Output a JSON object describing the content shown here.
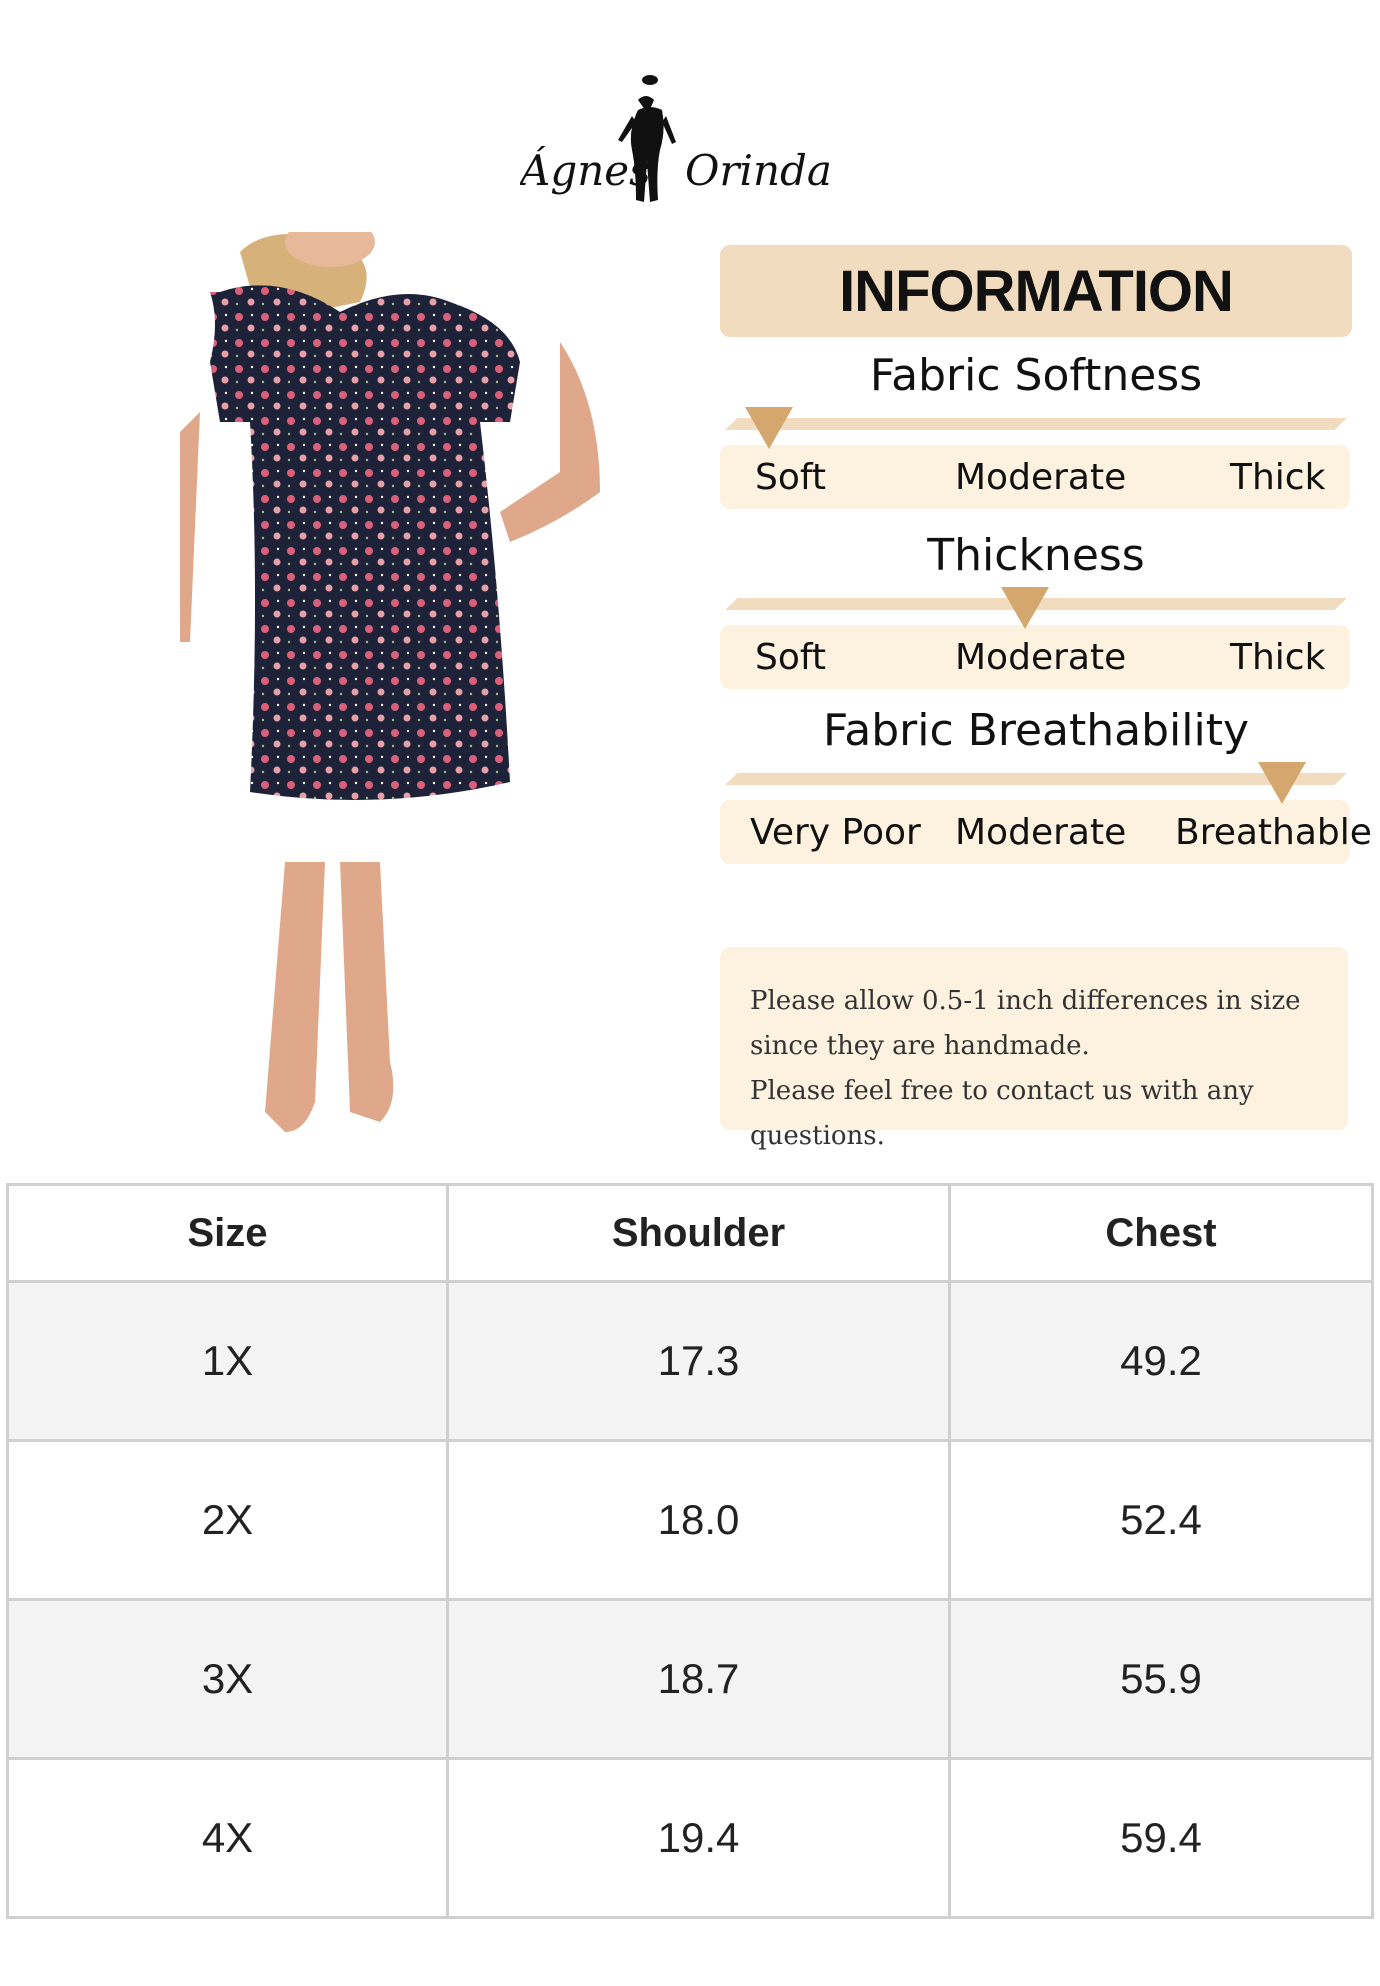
{
  "brand": {
    "logo_text": "Ágnes Orinda"
  },
  "info": {
    "title": "INFORMATION",
    "sections": [
      {
        "title": "Fabric Softness",
        "labels": [
          "Soft",
          "Moderate",
          "Thick"
        ],
        "selected": "Soft",
        "level": 0.05
      },
      {
        "title": "Thickness",
        "labels": [
          "Soft",
          "Moderate",
          "Thick"
        ],
        "selected": "Moderate",
        "level": 0.5
      },
      {
        "title": "Fabric Breathability",
        "labels": [
          "Very Poor",
          "Moderate",
          "Breathable"
        ],
        "selected": "Breathable",
        "level": 0.95
      }
    ],
    "note": [
      "Please allow 0.5-1 inch differences in size",
      "since they are handmade.",
      "Please feel free to contact us with any questions."
    ]
  },
  "size_table": {
    "headers": [
      "Size",
      "Shoulder",
      "Chest"
    ],
    "rows": [
      [
        "1X",
        "17.3",
        "49.2"
      ],
      [
        "2X",
        "18.0",
        "52.4"
      ],
      [
        "3X",
        "18.7",
        "55.9"
      ],
      [
        "4X",
        "19.4",
        "59.4"
      ]
    ]
  },
  "colors": {
    "accent": "#d3a76e",
    "header_bg": "#f2dcbf",
    "scale_bg": "#fdf1df",
    "dress": "#1e2238"
  }
}
